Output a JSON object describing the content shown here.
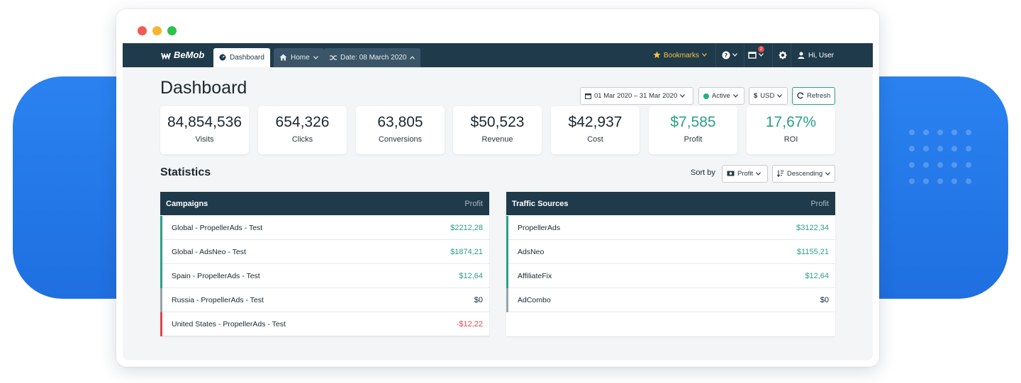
{
  "colors": {
    "brand_navy": "#1f3a4a",
    "accent_green": "#2aa086",
    "negative_red": "#e0474c",
    "neutral_gray": "#9aa3ab",
    "background_blue": "#1f6fe0",
    "bookmarks_yellow": "#f6c23e"
  },
  "app": {
    "name": "BeMob"
  },
  "nav": {
    "tabs": [
      {
        "label": "Dashboard",
        "icon": "gauge-icon",
        "active": true
      },
      {
        "label": "Home",
        "icon": "home-icon"
      },
      {
        "label": "Date: 08 March 2020",
        "icon": "shuffle-icon"
      }
    ],
    "bookmarks_label": "Bookmarks",
    "windows_badge": "2",
    "user_label": "Hi, User"
  },
  "header": {
    "title": "Dashboard",
    "date_range": "01 Mar 2020 – 31 Mar 2020",
    "status": "Active",
    "currency": "USD",
    "refresh_label": "Refresh"
  },
  "kpis": [
    {
      "value": "84,854,536",
      "label": "Visits"
    },
    {
      "value": "654,326",
      "label": "Clicks"
    },
    {
      "value": "63,805",
      "label": "Conversions"
    },
    {
      "value": "$50,523",
      "label": "Revenue"
    },
    {
      "value": "$42,937",
      "label": "Cost"
    },
    {
      "value": "$7,585",
      "label": "Profit"
    },
    {
      "value": "17,67%",
      "label": "ROI"
    }
  ],
  "statistics": {
    "title": "Statistics",
    "sort_by_label": "Sort by",
    "sort_field": "Profit",
    "sort_order": "Descending"
  },
  "campaigns": {
    "header": "Campaigns",
    "profit_header": "Profit",
    "rows": [
      {
        "name": "Global - PropellerAds - Test",
        "profit": "$2212,28",
        "status": "positive"
      },
      {
        "name": "Global - AdsNeo - Test",
        "profit": "$1874,21",
        "status": "positive"
      },
      {
        "name": "Spain - PropellerAds - Test",
        "profit": "$12,64",
        "status": "positive"
      },
      {
        "name": "Russia - PropellerAds - Test",
        "profit": "$0",
        "status": "neutral"
      },
      {
        "name": "United States - PropellerAds - Test",
        "profit": "-$12,22",
        "status": "negative"
      }
    ]
  },
  "traffic_sources": {
    "header": "Traffic Sources",
    "profit_header": "Profit",
    "rows": [
      {
        "name": "PropellerAds",
        "profit": "$3122,34",
        "status": "positive"
      },
      {
        "name": "AdsNeo",
        "profit": "$1155,21",
        "status": "positive"
      },
      {
        "name": "AffiliateFix",
        "profit": "$12,64",
        "status": "positive"
      },
      {
        "name": "AdCombo",
        "profit": "$0",
        "status": "neutral"
      }
    ]
  }
}
